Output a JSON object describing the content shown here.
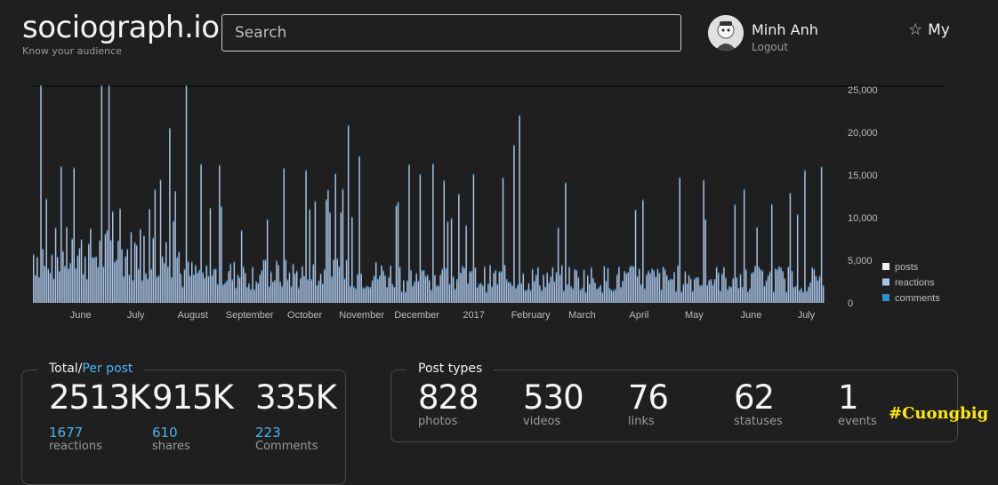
{
  "header": {
    "brand": "sociograph.io",
    "tagline": "Know your audience",
    "search_placeholder": "Search",
    "user_name": "Minh Anh",
    "logout": "Logout",
    "my_label": "My"
  },
  "chart_data": {
    "type": "bar",
    "x_ticks": [
      "June",
      "July",
      "August",
      "September",
      "October",
      "November",
      "December",
      "2017",
      "February",
      "March",
      "April",
      "May",
      "June",
      "July"
    ],
    "y_ticks": [
      "25,000",
      "20,000",
      "15,000",
      "10,000",
      "5,000",
      "0"
    ],
    "ylim": [
      0,
      25500
    ],
    "legend": [
      "posts",
      "reactions",
      "comments"
    ],
    "legend_position": "right",
    "colors": {
      "posts": "#f0f0f0",
      "reactions": "#a9c4e6",
      "comments": "#2b8fd0"
    },
    "peaks": [
      {
        "date": "2016-05-19",
        "value": 25800
      },
      {
        "date": "2016-06-21",
        "value": 26000
      },
      {
        "date": "2016-06-25",
        "value": 26000
      },
      {
        "date": "2016-08-06",
        "value": 26000
      },
      {
        "date": "2016-07-28",
        "value": 20500
      },
      {
        "date": "2016-11-02",
        "value": 20800
      },
      {
        "date": "2017-02-04",
        "value": 22000
      },
      {
        "date": "2017-02-01",
        "value": 18500
      },
      {
        "date": "2016-05-30",
        "value": 16000
      },
      {
        "date": "2016-09-28",
        "value": 15800
      },
      {
        "date": "2016-11-08",
        "value": 17200
      },
      {
        "date": "2016-12-11",
        "value": 15100
      },
      {
        "date": "2017-01-10",
        "value": 15100
      },
      {
        "date": "2017-03-01",
        "value": 14100
      },
      {
        "date": "2017-04-12",
        "value": 12100
      },
      {
        "date": "2017-05-15",
        "value": 14400
      },
      {
        "date": "2017-06-21",
        "value": 11600
      },
      {
        "date": "2017-07-05",
        "value": 10400
      }
    ]
  },
  "totals": {
    "legend_total": "Total/",
    "legend_per": "Per post",
    "items": [
      {
        "total": "2513K",
        "per": "1677",
        "label": "reactions"
      },
      {
        "total": "915K",
        "per": "610",
        "label": "shares"
      },
      {
        "total": "335K",
        "per": "223",
        "label": "Comments"
      }
    ]
  },
  "post_types": {
    "legend": "Post types",
    "items": [
      {
        "count": "828",
        "label": "photos"
      },
      {
        "count": "530",
        "label": "videos"
      },
      {
        "count": "76",
        "label": "links"
      },
      {
        "count": "62",
        "label": "statuses"
      },
      {
        "count": "1",
        "label": "events"
      }
    ]
  },
  "watermark": "#Cuongbig"
}
